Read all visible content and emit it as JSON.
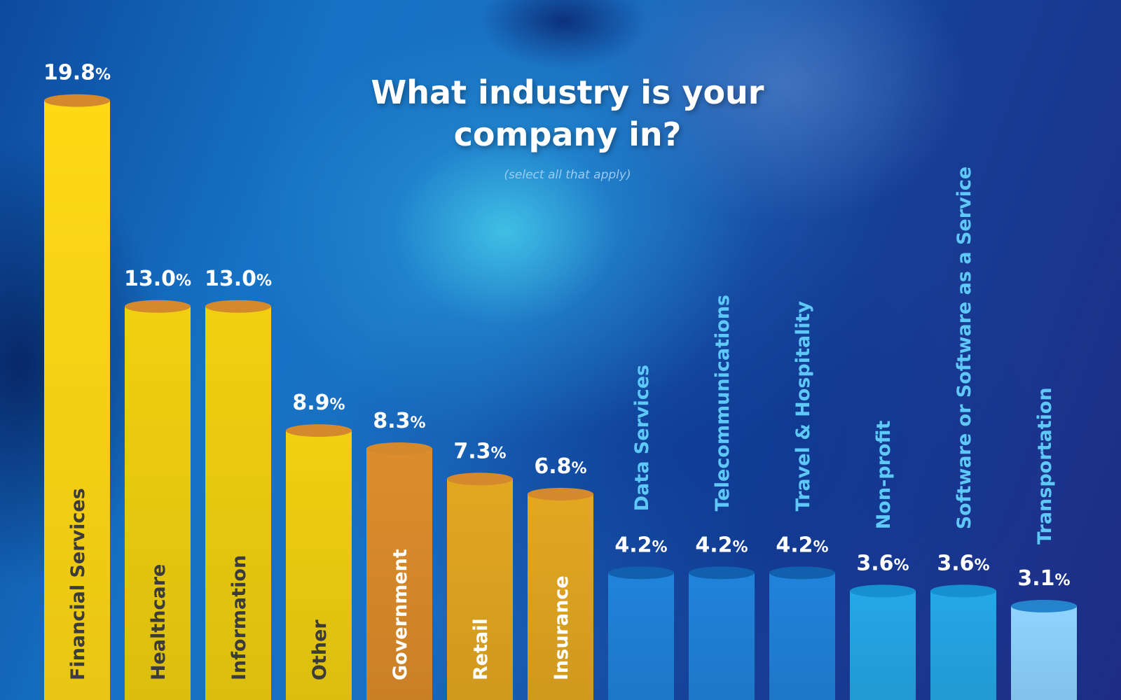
{
  "title_line1": "What industry is your",
  "title_line2": "company in?",
  "subtitle": "(select all that apply)",
  "chart_data": {
    "type": "bar",
    "title": "What industry is your company in?",
    "subtitle": "(select all that apply)",
    "unit": "%",
    "categories": [
      "Financial Services",
      "Healthcare",
      "Information",
      "Other",
      "Government",
      "Retail",
      "Insurance",
      "Data Services",
      "Telecommunications",
      "Travel & Hospitality",
      "Non-profit",
      "Software or Software as a Service",
      "Transportation"
    ],
    "values": [
      19.8,
      13.0,
      13.0,
      8.9,
      8.3,
      7.3,
      6.8,
      4.2,
      4.2,
      4.2,
      3.6,
      3.6,
      3.1
    ],
    "labels": [
      "19.8",
      "13.0",
      "13.0",
      "8.9",
      "8.3",
      "7.3",
      "6.8",
      "4.2",
      "4.2",
      "4.2",
      "3.6",
      "3.6",
      "3.1"
    ],
    "bar_colors": [
      "#fad515",
      "#eccc10",
      "#eccc10",
      "#eccc10",
      "#d98a2a",
      "#dfa420",
      "#dfa420",
      "#1f80d6",
      "#1f80d6",
      "#1f80d6",
      "#24a4e2",
      "#24a4e2",
      "#8cd0fa"
    ],
    "top_colors": [
      "#d4892d",
      "#d4892d",
      "#d4892d",
      "#d4892d",
      "#d4892d",
      "#d4892d",
      "#d4892d",
      "#1060ae",
      "#1060ae",
      "#1060ae",
      "#1790cf",
      "#1790cf",
      "#2384cc"
    ],
    "label_colors": [
      "#3b3b3b",
      "#3b3b3b",
      "#3b3b3b",
      "#3b3b3b",
      "#ffffff",
      "#ffffff",
      "#ffffff",
      "#5ec9f8",
      "#5ec9f8",
      "#5ec9f8",
      "#5ec9f8",
      "#5ec9f8",
      "#5ec9f8"
    ],
    "ylim": [
      0,
      20
    ],
    "grid": false,
    "legend": "none"
  }
}
